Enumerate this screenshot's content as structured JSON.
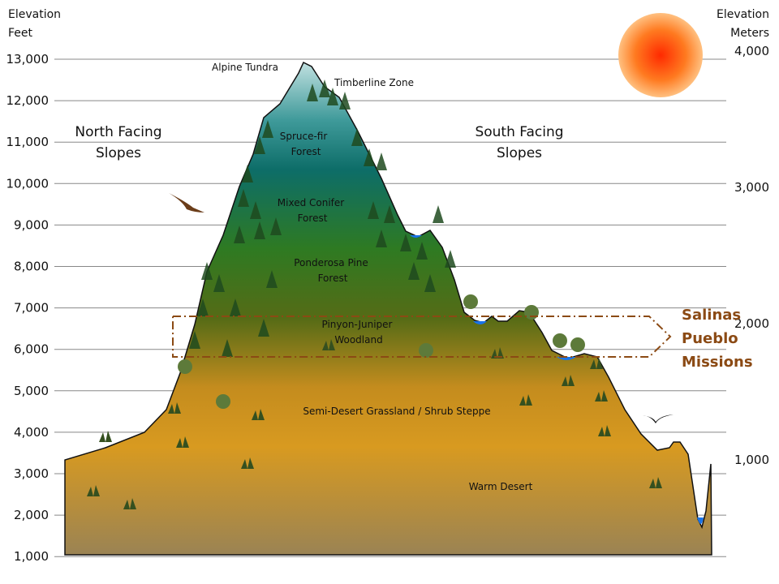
{
  "left_axis": {
    "title_line1": "Elevation",
    "title_line2": "Feet",
    "ticks": [
      "13,000",
      "12,000",
      "11,000",
      "10,000",
      "9,000",
      "8,000",
      "7,000",
      "6,000",
      "5,000",
      "4,000",
      "3,000",
      "2,000",
      "1,000"
    ]
  },
  "right_axis": {
    "title_line1": "Elevation",
    "title_line2": "Meters",
    "ticks": [
      "4,000",
      "3,000",
      "2,000",
      "1,000"
    ]
  },
  "slopes": {
    "north_line1": "North Facing",
    "north_line2": "Slopes",
    "south_line1": "South Facing",
    "south_line2": "Slopes"
  },
  "zones": {
    "alpine": "Alpine Tundra",
    "timberline": "Timberline Zone",
    "spruce1": "Spruce-fir",
    "spruce2": "Forest",
    "mixed1": "Mixed Conifer",
    "mixed2": "Forest",
    "ponderosa1": "Ponderosa Pine",
    "ponderosa2": "Forest",
    "pinyon1": "Pinyon-Juniper",
    "pinyon2": "Woodland",
    "grassland": "Semi-Desert Grassland / Shrub Steppe",
    "desert": "Warm Desert"
  },
  "highlight": {
    "line1": "Salinas",
    "line2": "Pueblo",
    "line3": "Missions",
    "color": "#8b4a14"
  },
  "colors": {
    "sun_core": "#ff3300",
    "sun_edge": "#ffb060",
    "alpine": "#b8dcdc",
    "spruce": "#0e6e6a",
    "conifer": "#2f7a1e",
    "grassland": "#d8981e",
    "desert": "#9c8452",
    "water": "#1a73e8"
  }
}
